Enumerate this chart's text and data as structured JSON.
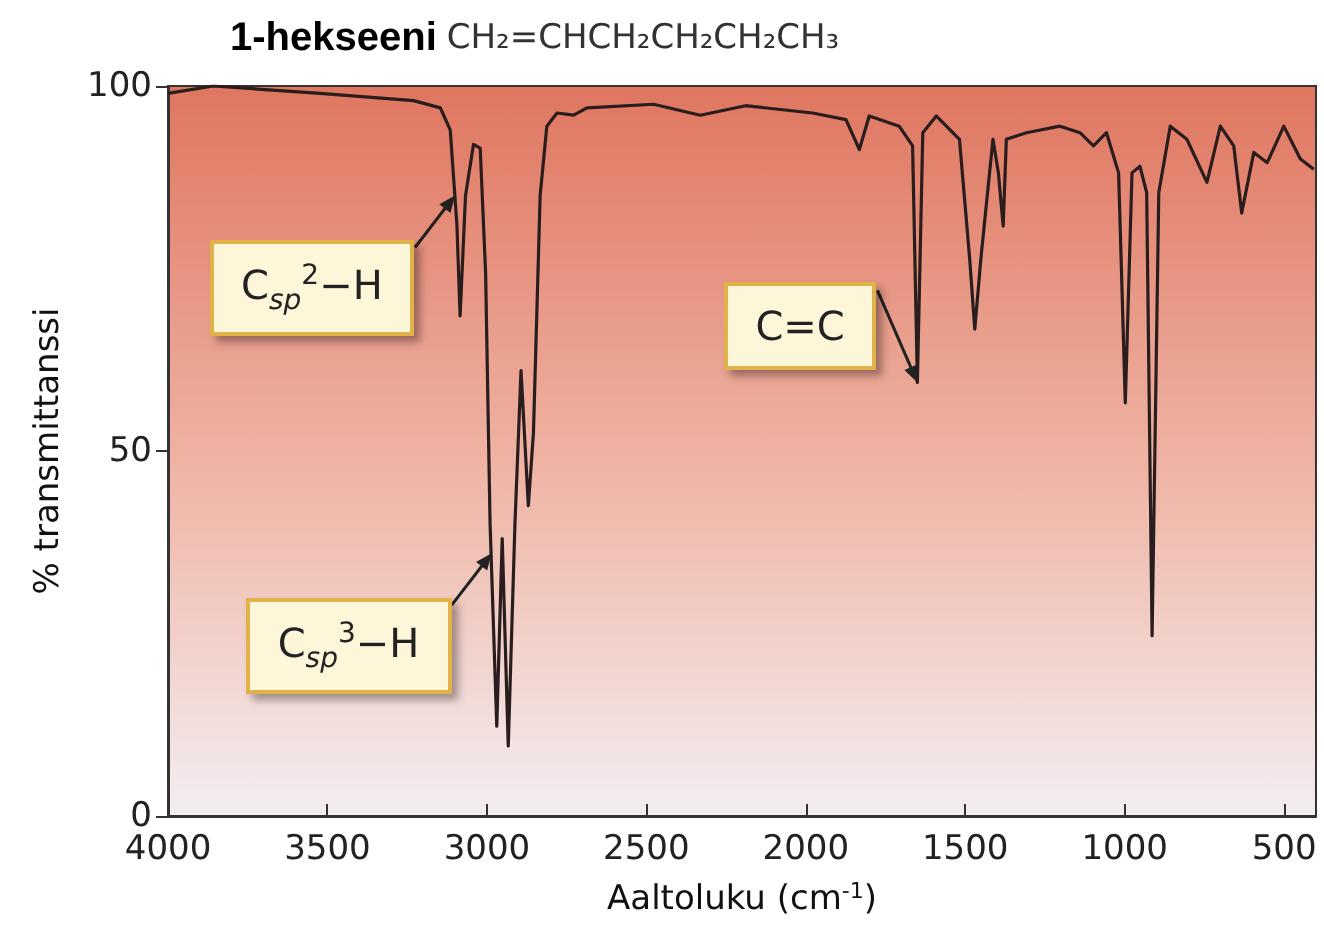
{
  "chart_data": {
    "type": "line",
    "title": "1-hekseeni",
    "subtitle": "CH₂=CHCH₂CH₂CH₂CH₃",
    "xlabel": "Aaltoluku (cm$^{-1}$)",
    "ylabel": "% transmittanssi",
    "x": [
      4000,
      3858,
      3523,
      3230,
      3146,
      3115,
      3094,
      3084,
      3067,
      3042,
      3021,
      3004,
      2990,
      2969,
      2952,
      2933,
      2912,
      2893,
      2870,
      2854,
      2833,
      2812,
      2780,
      2728,
      2686,
      2477,
      2331,
      2189,
      1979,
      1874,
      1832,
      1801,
      1707,
      1665,
      1650,
      1633,
      1591,
      1518,
      1486,
      1470,
      1451,
      1430,
      1413,
      1396,
      1381,
      1371,
      1308,
      1203,
      1140,
      1098,
      1057,
      1019,
      998,
      977,
      952,
      931,
      914,
      893,
      857,
      805,
      742,
      700,
      658,
      633,
      595,
      553,
      501,
      449,
      407
    ],
    "series": [
      {
        "color": "#2a1d1d",
        "values": [
          99,
          100,
          99,
          98,
          97,
          94,
          81,
          68.5,
          85,
          92,
          91.5,
          74.4,
          40,
          12.3,
          38,
          9.6,
          40,
          61,
          42.5,
          52.5,
          85,
          94.5,
          96.3,
          96,
          97,
          97.5,
          96,
          97.3,
          96.3,
          95.4,
          91.3,
          95.9,
          94.5,
          91.8,
          59.4,
          93.6,
          95.9,
          92.7,
          76.3,
          66.7,
          76.3,
          85.4,
          92.7,
          88.1,
          80.8,
          92.7,
          93.6,
          94.5,
          93.6,
          91.8,
          93.6,
          88.1,
          56.6,
          88.1,
          89,
          85.4,
          24.7,
          85.4,
          94.5,
          92.7,
          86.8,
          94.5,
          91.8,
          82.6,
          90.9,
          89.5,
          94.5,
          90,
          88.6
        ]
      }
    ],
    "xlim": [
      4000,
      400
    ],
    "xticks": [
      4000,
      3500,
      3000,
      2500,
      2000,
      1500,
      1000,
      500
    ],
    "ylim": [
      0,
      100
    ],
    "yticks": [
      0,
      50,
      100
    ],
    "grid": false,
    "marker": "none",
    "line_style": "solid",
    "annotations": [
      {
        "text": "C$_{sp}$$^{2}$−H",
        "x": 3100,
        "y": 85
      },
      {
        "text": "C$_{sp}$$^{3}$−H",
        "x": 2985,
        "y": 36
      },
      {
        "text": "C=C",
        "x": 1650,
        "y": 59.4
      }
    ]
  }
}
